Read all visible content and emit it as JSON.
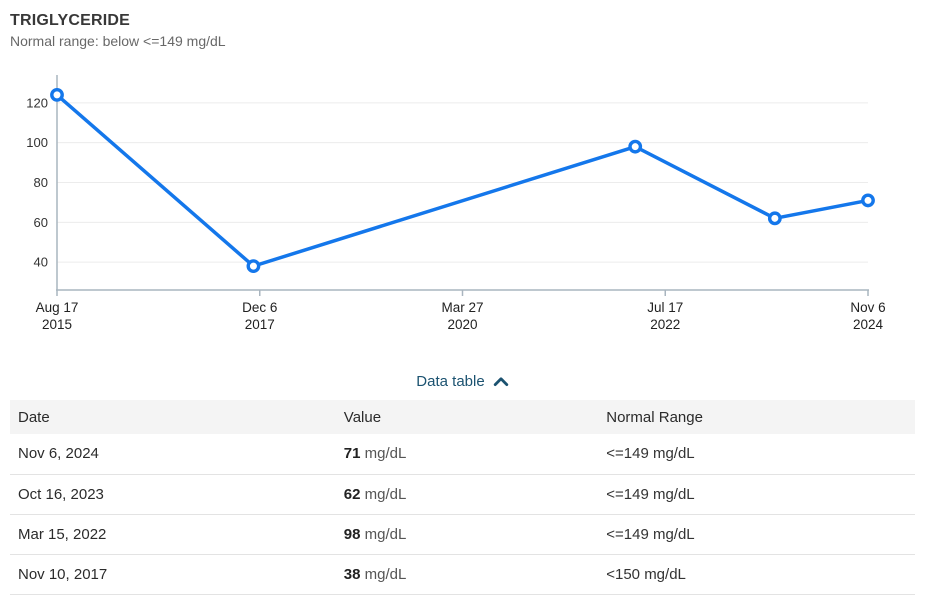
{
  "header": {
    "title": "TRIGLYCERIDE",
    "subtitle": "Normal range: below <=149 mg/dL"
  },
  "chart_data": {
    "type": "line",
    "title": "TRIGLYCERIDE",
    "ylabel": "mg/dL",
    "series_name": "Triglyceride",
    "points": [
      {
        "date": "Aug 17, 2015",
        "value": 124
      },
      {
        "date": "Nov 10, 2017",
        "value": 38
      },
      {
        "date": "Mar 15, 2022",
        "value": 98
      },
      {
        "date": "Oct 16, 2023",
        "value": 62
      },
      {
        "date": "Nov 6, 2024",
        "value": 71
      }
    ],
    "x_tick_labels": [
      [
        "Aug 17",
        "2015"
      ],
      [
        "Dec 6",
        "2017"
      ],
      [
        "Mar 27",
        "2020"
      ],
      [
        "Jul 17",
        "2022"
      ],
      [
        "Nov 6",
        "2024"
      ]
    ],
    "y_ticks": [
      40,
      60,
      80,
      100,
      120
    ],
    "ylim": [
      26,
      134
    ],
    "grid": "horizontal",
    "legend": "none",
    "line_color": "#1477eb",
    "axis_color": "#a9b5bf",
    "grid_color": "#ececec",
    "tick_label_color": "#333333"
  },
  "data_table": {
    "toggle_label": "Data table",
    "toggle_color": "#1b5270",
    "columns": [
      "Date",
      "Value",
      "Normal Range"
    ],
    "rows": [
      {
        "date": "Nov 6, 2024",
        "value": "71",
        "unit": "mg/dL",
        "normal_range": "<=149 mg/dL"
      },
      {
        "date": "Oct 16, 2023",
        "value": "62",
        "unit": "mg/dL",
        "normal_range": "<=149 mg/dL"
      },
      {
        "date": "Mar 15, 2022",
        "value": "98",
        "unit": "mg/dL",
        "normal_range": "<=149 mg/dL"
      },
      {
        "date": "Nov 10, 2017",
        "value": "38",
        "unit": "mg/dL",
        "normal_range": "<150 mg/dL"
      }
    ]
  }
}
